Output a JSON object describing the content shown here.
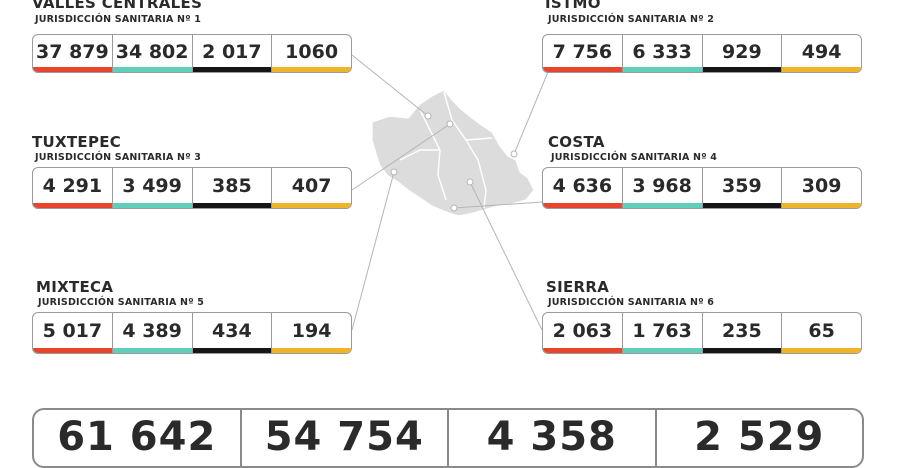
{
  "colors": {
    "red": "#e8452c",
    "teal": "#5fcfbb",
    "black": "#161616",
    "yellow": "#f0b429",
    "map": "#dcdcdc",
    "line": "#b5b5b5"
  },
  "regions": [
    {
      "id": "valles",
      "name": "VALLES CENTRALES",
      "sub": "JURISDICCIÓN SANITARIA Nº 1",
      "values": [
        "37 879",
        "34 802",
        "2 017",
        "1060"
      ]
    },
    {
      "id": "istmo",
      "name": "ISTMO",
      "sub": "JURISDICCIÓN SANITARIA Nº 2",
      "values": [
        "7 756",
        "6 333",
        "929",
        "494"
      ]
    },
    {
      "id": "tuxtepec",
      "name": "TUXTEPEC",
      "sub": "JURISDICCIÓN SANITARIA Nº 3",
      "values": [
        "4 291",
        "3 499",
        "385",
        "407"
      ]
    },
    {
      "id": "costa",
      "name": "COSTA",
      "sub": "JURISDICCIÓN SANITARIA Nº 4",
      "values": [
        "4 636",
        "3 968",
        "359",
        "309"
      ]
    },
    {
      "id": "mixteca",
      "name": "MIXTECA",
      "sub": "JURISDICCIÓN SANITARIA Nº 5",
      "values": [
        "5 017",
        "4 389",
        "434",
        "194"
      ]
    },
    {
      "id": "sierra",
      "name": "SIERRA",
      "sub": "JURISDICCIÓN SANITARIA Nº 6",
      "values": [
        "2 063",
        "1 763",
        "235",
        "65"
      ]
    }
  ],
  "totals": [
    "61 642",
    "54 754",
    "4 358",
    "2 529"
  ]
}
